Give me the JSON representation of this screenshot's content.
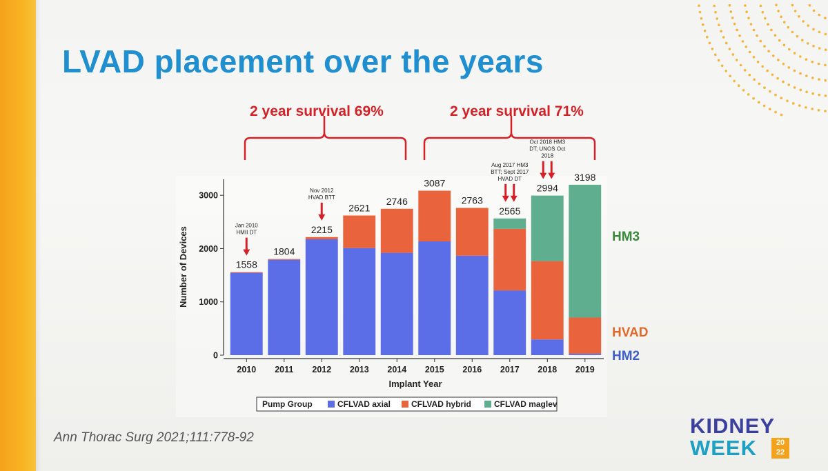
{
  "slide": {
    "title": "LVAD placement over the years",
    "survival_left": "2 year survival 69%",
    "survival_right": "2 year survival 71%",
    "citation": "Ann Thorac Surg 2021;111:778-92",
    "device_labels": [
      {
        "text": "HM3",
        "color": "#3a8a3e"
      },
      {
        "text": "HVAD",
        "color": "#e06a2b"
      },
      {
        "text": "HM2",
        "color": "#3e5fc8"
      }
    ],
    "logo": {
      "line1": "KIDNEY",
      "line2": "WEEK",
      "year_top": "20",
      "year_bottom": "22"
    }
  },
  "chart_data": {
    "type": "bar",
    "stacked": true,
    "categories": [
      "2010",
      "2011",
      "2012",
      "2013",
      "2014",
      "2015",
      "2016",
      "2017",
      "2018",
      "2019"
    ],
    "series": [
      {
        "name": "CFLVAD axial",
        "color": "#5b6ee8",
        "values": [
          1545,
          1790,
          2175,
          2010,
          1920,
          2135,
          1865,
          1215,
          295,
          25
        ]
      },
      {
        "name": "CFLVAD hybrid",
        "color": "#e9643c",
        "values": [
          13,
          14,
          40,
          611,
          826,
          952,
          898,
          1155,
          1470,
          680
        ]
      },
      {
        "name": "CFLVAD maglev",
        "color": "#5fae8f",
        "values": [
          0,
          0,
          0,
          0,
          0,
          0,
          0,
          195,
          1229,
          2493
        ]
      }
    ],
    "totals": [
      1558,
      1804,
      2215,
      2621,
      2746,
      3087,
      2763,
      2565,
      2994,
      3198
    ],
    "xlabel": "Implant Year",
    "ylabel": "Number of Devices",
    "ylim": [
      0,
      3300
    ],
    "yticks": [
      0,
      1000,
      2000,
      3000
    ],
    "legend": {
      "title": "Pump Group",
      "position": "bottom"
    },
    "annotations": [
      {
        "category": "2010",
        "lines": [
          "Jan 2010",
          "HMII DT"
        ],
        "arrows": 1
      },
      {
        "category": "2012",
        "lines": [
          "Nov 2012",
          "HVAD BTT"
        ],
        "arrows": 1
      },
      {
        "category": "2017",
        "lines": [
          "Aug 2017 HM3",
          "BTT; Sept 2017",
          "HVAD DT"
        ],
        "arrows": 2
      },
      {
        "category": "2018",
        "lines": [
          "Oct 2018 HM3",
          "DT; UNOS Oct",
          "2018"
        ],
        "arrows": 2
      }
    ]
  }
}
